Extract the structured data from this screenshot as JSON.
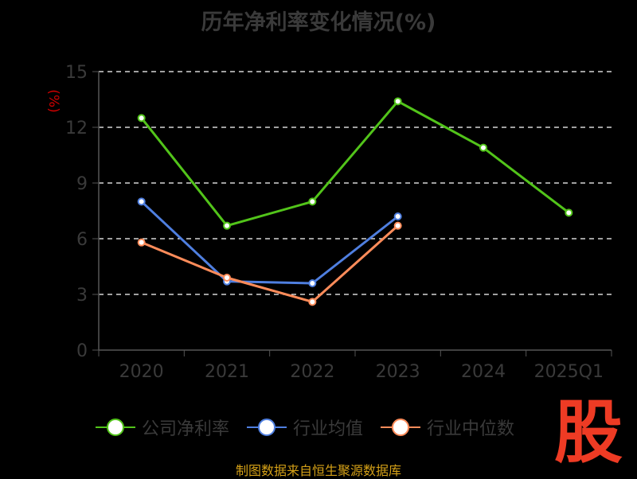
{
  "title": "历年净利率变化情况(%)",
  "source": "制图数据来自恒生聚源数据库",
  "watermark": "股",
  "chart_data": {
    "type": "line",
    "title": "历年净利率变化情况(%)",
    "ylabel": "(%)",
    "xlabel": "",
    "categories": [
      "2020",
      "2021",
      "2022",
      "2023",
      "2024",
      "2025Q1"
    ],
    "ylim": [
      0,
      15
    ],
    "yticks": [
      0,
      3,
      6,
      9,
      12,
      15
    ],
    "grid": true,
    "legend_position": "bottom",
    "series": [
      {
        "name": "公司净利率",
        "color": "#52c41a",
        "values": [
          12.5,
          6.7,
          8.0,
          13.4,
          10.9,
          7.4
        ]
      },
      {
        "name": "行业均值",
        "color": "#4f7fe0",
        "values": [
          8.0,
          3.7,
          3.6,
          7.2,
          null,
          null
        ]
      },
      {
        "name": "行业中位数",
        "color": "#ff8c5a",
        "values": [
          5.8,
          3.9,
          2.6,
          6.7,
          null,
          null
        ]
      }
    ]
  },
  "colors": {
    "axis": "#555555",
    "tick_label": "#3a3a3a",
    "grid": "#ffffff",
    "ylabel": "#cc0000"
  }
}
